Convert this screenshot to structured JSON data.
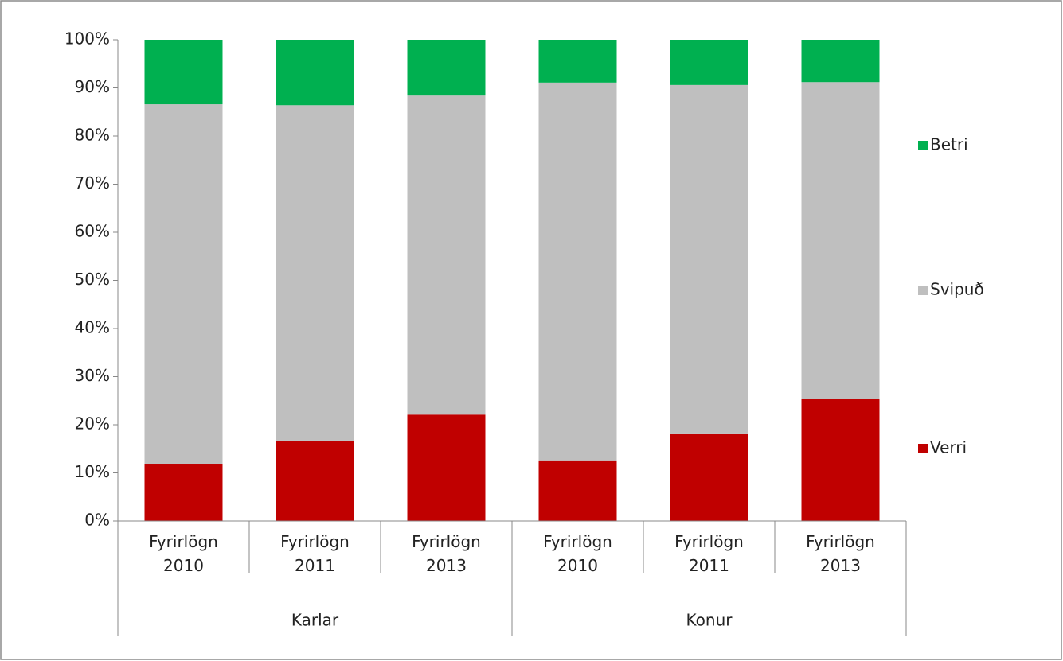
{
  "chart_data": {
    "type": "stacked_bar",
    "groups": [
      {
        "name": "Karlar",
        "categories": [
          "Fyrirlögn 2010",
          "Fyrirlögn 2011",
          "Fyrirlögn 2013"
        ]
      },
      {
        "name": "Konur",
        "categories": [
          "Fyrirlögn 2010",
          "Fyrirlögn 2011",
          "Fyrirlögn 2013"
        ]
      }
    ],
    "series": [
      {
        "name": "Verri",
        "color": "#c00000",
        "values": [
          11.9,
          16.7,
          22.1,
          12.6,
          18.2,
          25.3
        ]
      },
      {
        "name": "Svipuð",
        "color": "#bfbfbf",
        "values": [
          74.7,
          69.7,
          66.3,
          78.5,
          72.4,
          65.9
        ]
      },
      {
        "name": "Betri",
        "color": "#00b050",
        "values": [
          13.4,
          13.6,
          11.6,
          8.9,
          9.4,
          8.8
        ]
      }
    ],
    "ylim": [
      0,
      100
    ],
    "yticks": [
      {
        "value": 0,
        "label": "0%"
      },
      {
        "value": 10,
        "label": "10%"
      },
      {
        "value": 20,
        "label": "20%"
      },
      {
        "value": 30,
        "label": "30%"
      },
      {
        "value": 40,
        "label": "40%"
      },
      {
        "value": 50,
        "label": "50%"
      },
      {
        "value": 60,
        "label": "60%"
      },
      {
        "value": 70,
        "label": "70%"
      },
      {
        "value": 80,
        "label": "80%"
      },
      {
        "value": 90,
        "label": "90%"
      },
      {
        "value": 100,
        "label": "100%"
      }
    ],
    "legend": "right"
  }
}
